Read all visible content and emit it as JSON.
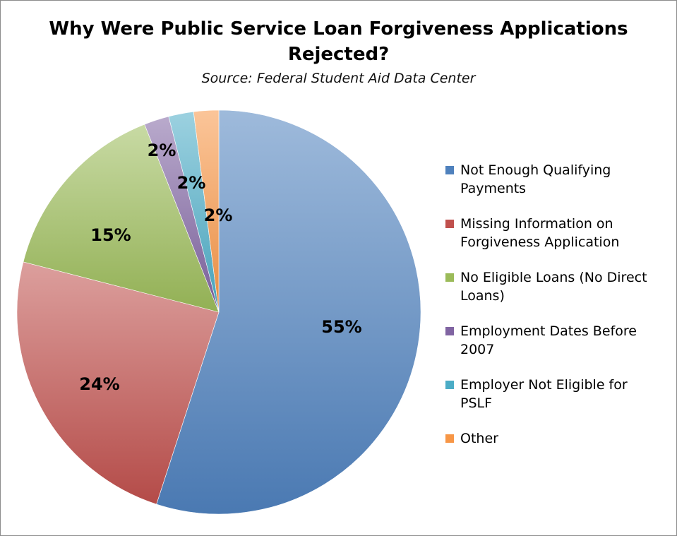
{
  "chart_data": {
    "type": "pie",
    "title_line1": "Why Were Public Service Loan Forgiveness Applications",
    "title_line2": "Rejected?",
    "subtitle": "Source: Federal Student Aid Data Center",
    "legend_position": "right",
    "slices": [
      {
        "label": "Not Enough Qualifying Payments",
        "value": 55,
        "display": "55%",
        "color": "#4f81bd",
        "legend": [
          "Not Enough Qualifying",
          "Payments"
        ]
      },
      {
        "label": "Missing Information on Forgiveness Application",
        "value": 24,
        "display": "24%",
        "color": "#c0504d",
        "legend": [
          "Missing Information on",
          "Forgiveness Application"
        ]
      },
      {
        "label": "No Eligible Loans (No Direct Loans)",
        "value": 15,
        "display": "15%",
        "color": "#9bbb59",
        "legend": [
          "No Eligible Loans (No Direct",
          "Loans)"
        ]
      },
      {
        "label": "Employment Dates Before 2007",
        "value": 2,
        "display": "2%",
        "color": "#8064a2",
        "legend": [
          "Employment Dates Before",
          "2007"
        ]
      },
      {
        "label": "Employer Not Eligible for PSLF",
        "value": 2,
        "display": "2%",
        "color": "#4bacc6",
        "legend": [
          "Employer Not Eligible for",
          "PSLF"
        ]
      },
      {
        "label": "Other",
        "value": 2,
        "display": "2%",
        "color": "#f79646",
        "legend": [
          "Other"
        ]
      }
    ]
  }
}
